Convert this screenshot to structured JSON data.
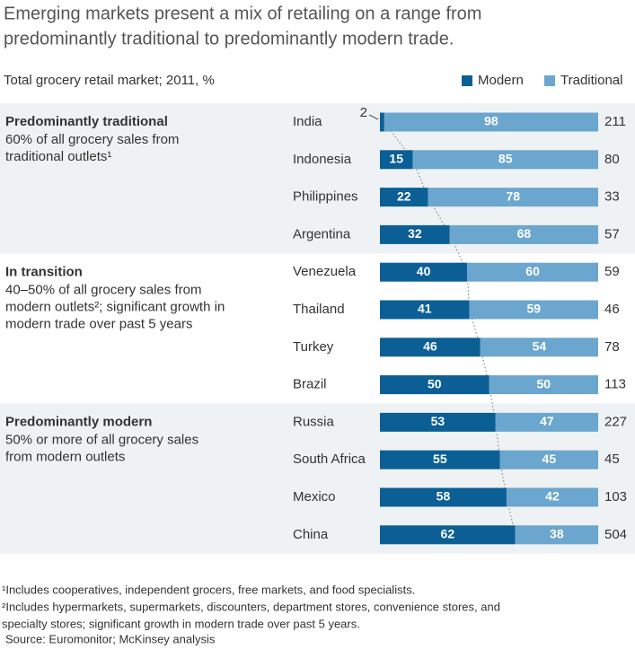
{
  "chart_data": {
    "type": "stacked-bar-horizontal",
    "title": [
      "Emerging markets present a mix of retailing on a range from",
      "predominantly traditional to predominantly modern trade."
    ],
    "subtitle": "Total grocery retail market; 2011, %",
    "xlim": [
      0,
      100
    ],
    "series": [
      {
        "name": "Modern",
        "color": "#0b5f95"
      },
      {
        "name": "Traditional",
        "color": "#6ba6cf"
      }
    ],
    "groups": [
      {
        "title": "Predominantly traditional",
        "description": [
          "60% of all grocery sales from",
          "traditional outlets¹"
        ],
        "categories": [
          "India",
          "Indonesia",
          "Philippines",
          "Argentina"
        ],
        "series": [
          {
            "values": [
              2,
              15,
              22,
              32
            ]
          },
          {
            "values": [
              98,
              85,
              78,
              68
            ]
          }
        ],
        "market_size": [
          211,
          80,
          33,
          57
        ]
      },
      {
        "title": "In transition",
        "description": [
          "40–50% of all grocery sales from",
          "modern outlets²; significant growth in",
          "modern trade over past 5 years"
        ],
        "categories": [
          "Venezuela",
          "Thailand",
          "Turkey",
          "Brazil"
        ],
        "series": [
          {
            "values": [
              40,
              41,
              46,
              50
            ]
          },
          {
            "values": [
              60,
              59,
              54,
              50
            ]
          }
        ],
        "market_size": [
          59,
          46,
          78,
          113
        ]
      },
      {
        "title": "Predominantly modern",
        "description": [
          "50% or more of all grocery sales",
          "from modern outlets"
        ],
        "categories": [
          "Russia",
          "South Africa",
          "Mexico",
          "China"
        ],
        "series": [
          {
            "values": [
              53,
              55,
              58,
              62
            ]
          },
          {
            "values": [
              47,
              45,
              42,
              38
            ]
          }
        ],
        "market_size": [
          227,
          45,
          103,
          504
        ]
      }
    ],
    "footnotes": [
      "¹Includes cooperatives, independent grocers, free markets, and food specialists.",
      "²Includes hypermarkets, supermarkets, discounters, department stores, convenience stores, and",
      " specialty stores; significant growth in modern trade over past 5 years."
    ],
    "source": "Source: Euromonitor; McKinsey analysis"
  }
}
